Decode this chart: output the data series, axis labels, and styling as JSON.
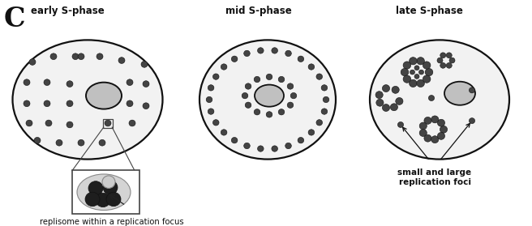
{
  "bg_color": "#ffffff",
  "cell_color": "#f2f2f2",
  "nucleus_color": "#c0c0c0",
  "dot_color": "#444444",
  "label_C": "C",
  "title_early": "early S-phase",
  "title_mid": "mid S-phase",
  "title_late": "late S-phase",
  "annotation1": "replisome within a replication focus",
  "annotation2": "small and large\nreplication foci",
  "figw": 6.56,
  "figh": 2.79,
  "dpi": 100
}
